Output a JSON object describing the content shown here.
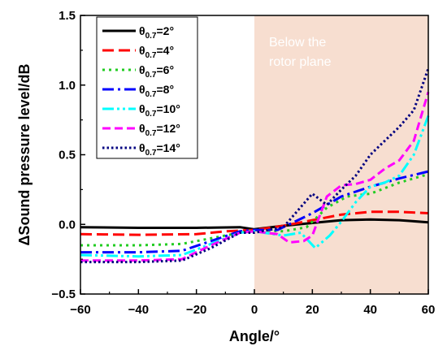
{
  "chart_data": {
    "type": "line",
    "xlabel": "Angle/°",
    "ylabel": "ΔSound pressure level/dB",
    "xlim": [
      -60,
      60
    ],
    "ylim": [
      -0.5,
      1.5
    ],
    "xticks": [
      -60,
      -40,
      -20,
      0,
      20,
      40,
      60
    ],
    "yticks": [
      -0.5,
      0.0,
      0.5,
      1.0,
      1.5
    ],
    "xtick_labels": [
      "−60",
      "−40",
      "−20",
      "0",
      "20",
      "40",
      "60"
    ],
    "ytick_labels": [
      "−0.5",
      "0.0",
      "0.5",
      "1.0",
      "1.5"
    ],
    "grid": false,
    "legend_position": "top-left",
    "shaded_region": {
      "x_from": 0,
      "x_to": 60,
      "color": "#f7ded0",
      "label_lines": [
        "Below the",
        "rotor plane"
      ]
    },
    "series": [
      {
        "name_main": "θ",
        "name_sub": "0.7",
        "name_value": "=2°",
        "color": "#000000",
        "dash": "solid",
        "points": [
          [
            -60,
            -0.02
          ],
          [
            -40,
            -0.025
          ],
          [
            -20,
            -0.025
          ],
          [
            -5,
            -0.02
          ],
          [
            0,
            -0.035
          ],
          [
            10,
            -0.01
          ],
          [
            20,
            0.01
          ],
          [
            30,
            0.03
          ],
          [
            40,
            0.035
          ],
          [
            50,
            0.03
          ],
          [
            60,
            0.015
          ]
        ]
      },
      {
        "name_main": "θ",
        "name_sub": "0.7",
        "name_value": "=4°",
        "color": "#ff0000",
        "dash": "dash",
        "points": [
          [
            -60,
            -0.07
          ],
          [
            -40,
            -0.075
          ],
          [
            -20,
            -0.07
          ],
          [
            -10,
            -0.05
          ],
          [
            0,
            -0.04
          ],
          [
            10,
            -0.01
          ],
          [
            20,
            0.03
          ],
          [
            30,
            0.07
          ],
          [
            40,
            0.09
          ],
          [
            50,
            0.09
          ],
          [
            60,
            0.08
          ]
        ]
      },
      {
        "name_main": "θ",
        "name_sub": "0.7",
        "name_value": "=6°",
        "color": "#22cc22",
        "dash": "dot",
        "points": [
          [
            -60,
            -0.15
          ],
          [
            -40,
            -0.15
          ],
          [
            -25,
            -0.14
          ],
          [
            -15,
            -0.1
          ],
          [
            -5,
            -0.06
          ],
          [
            0,
            -0.04
          ],
          [
            10,
            -0.05
          ],
          [
            18,
            -0.02
          ],
          [
            25,
            0.12
          ],
          [
            32,
            0.2
          ],
          [
            40,
            0.22
          ],
          [
            50,
            0.3
          ],
          [
            60,
            0.36
          ]
        ]
      },
      {
        "name_main": "θ",
        "name_sub": "0.7",
        "name_value": "=8°",
        "color": "#0000ff",
        "dash": "dashdot",
        "points": [
          [
            -60,
            -0.2
          ],
          [
            -40,
            -0.2
          ],
          [
            -25,
            -0.19
          ],
          [
            -15,
            -0.12
          ],
          [
            -5,
            -0.05
          ],
          [
            0,
            -0.04
          ],
          [
            8,
            -0.04
          ],
          [
            15,
            0.03
          ],
          [
            20,
            0.08
          ],
          [
            30,
            0.2
          ],
          [
            40,
            0.27
          ],
          [
            50,
            0.33
          ],
          [
            60,
            0.38
          ]
        ]
      },
      {
        "name_main": "θ",
        "name_sub": "0.7",
        "name_value": "=10°",
        "color": "#00ffff",
        "dash": "dashdotdot",
        "points": [
          [
            -60,
            -0.22
          ],
          [
            -40,
            -0.23
          ],
          [
            -25,
            -0.22
          ],
          [
            -15,
            -0.14
          ],
          [
            -5,
            -0.06
          ],
          [
            0,
            -0.05
          ],
          [
            10,
            -0.08
          ],
          [
            16,
            -0.06
          ],
          [
            21,
            -0.17
          ],
          [
            26,
            -0.08
          ],
          [
            30,
            0.02
          ],
          [
            35,
            0.16
          ],
          [
            40,
            0.27
          ],
          [
            45,
            0.3
          ],
          [
            50,
            0.35
          ],
          [
            55,
            0.5
          ],
          [
            60,
            0.78
          ]
        ]
      },
      {
        "name_main": "θ",
        "name_sub": "0.7",
        "name_value": "=12°",
        "color": "#ff00ff",
        "dash": "dashlong",
        "points": [
          [
            -60,
            -0.26
          ],
          [
            -40,
            -0.26
          ],
          [
            -25,
            -0.25
          ],
          [
            -15,
            -0.15
          ],
          [
            -5,
            -0.06
          ],
          [
            0,
            -0.05
          ],
          [
            8,
            -0.07
          ],
          [
            12,
            -0.13
          ],
          [
            17,
            -0.12
          ],
          [
            20,
            -0.08
          ],
          [
            25,
            0.2
          ],
          [
            30,
            0.28
          ],
          [
            35,
            0.29
          ],
          [
            40,
            0.32
          ],
          [
            45,
            0.4
          ],
          [
            50,
            0.46
          ],
          [
            55,
            0.6
          ],
          [
            60,
            0.95
          ]
        ]
      },
      {
        "name_main": "θ",
        "name_sub": "0.7",
        "name_value": "=14°",
        "color": "#000080",
        "dash": "shortdot",
        "points": [
          [
            -60,
            -0.27
          ],
          [
            -40,
            -0.27
          ],
          [
            -25,
            -0.26
          ],
          [
            -15,
            -0.17
          ],
          [
            -5,
            -0.06
          ],
          [
            0,
            -0.06
          ],
          [
            10,
            -0.02
          ],
          [
            15,
            0.1
          ],
          [
            20,
            0.22
          ],
          [
            25,
            0.14
          ],
          [
            30,
            0.25
          ],
          [
            35,
            0.35
          ],
          [
            40,
            0.5
          ],
          [
            45,
            0.6
          ],
          [
            50,
            0.7
          ],
          [
            55,
            0.82
          ],
          [
            60,
            1.12
          ]
        ]
      }
    ]
  }
}
